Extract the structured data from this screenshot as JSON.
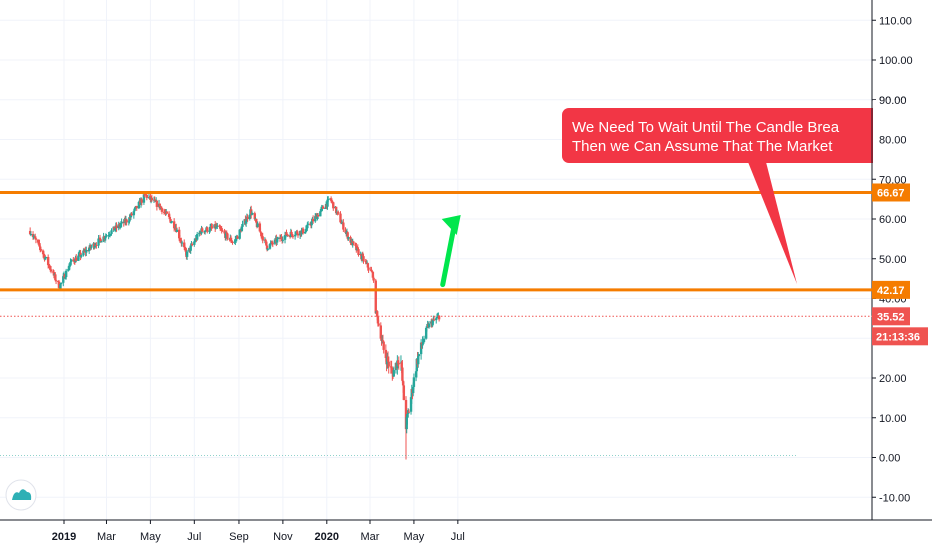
{
  "colors": {
    "up": "#26a69a",
    "down": "#ef5350",
    "level_line": "#f57c00",
    "last_price_line": "#ef5350",
    "annotation_bg": "#f23645",
    "arrow": "#00e64d",
    "grid": "#f0f3fa",
    "axis_line": "#131722"
  },
  "icons": {
    "logo": "tradingview-cloud-icon",
    "arrow": "up-arrow-icon"
  },
  "annotation": {
    "line1": "We Need To Wait Until The Candle Brea",
    "line2": "Then we Can Assume That The Market"
  },
  "chart_data": {
    "type": "candlestick",
    "title": "",
    "xlabel": "",
    "ylabel": "",
    "ylim": [
      -15,
      117
    ],
    "y_ticks": [
      "110.00",
      "100.00",
      "90.00",
      "80.00",
      "70.00",
      "60.00",
      "50.00",
      "40.00",
      "20.00",
      "10.00",
      "0.00",
      "-10.00"
    ],
    "x_ticks": [
      "2019",
      "Mar",
      "May",
      "Jul",
      "Sep",
      "Nov",
      "2020",
      "Mar",
      "May",
      "Jul"
    ],
    "grid": true,
    "price_path": [
      [
        "2018-11-15",
        57
      ],
      [
        "2018-12-01",
        52
      ],
      [
        "2018-12-20",
        45
      ],
      [
        "2018-12-26",
        43
      ],
      [
        "2019-01-10",
        49
      ],
      [
        "2019-02-01",
        52
      ],
      [
        "2019-03-01",
        56
      ],
      [
        "2019-04-01",
        60
      ],
      [
        "2019-04-24",
        66
      ],
      [
        "2019-05-15",
        63
      ],
      [
        "2019-06-05",
        58
      ],
      [
        "2019-06-20",
        51
      ],
      [
        "2019-07-10",
        57
      ],
      [
        "2019-08-01",
        58
      ],
      [
        "2019-08-25",
        54
      ],
      [
        "2019-09-17",
        62
      ],
      [
        "2019-10-10",
        53
      ],
      [
        "2019-11-05",
        56
      ],
      [
        "2019-12-01",
        57
      ],
      [
        "2020-01-06",
        65
      ],
      [
        "2020-02-01",
        55
      ],
      [
        "2020-02-20",
        50
      ],
      [
        "2020-03-05",
        46
      ],
      [
        "2020-03-09",
        37
      ],
      [
        "2020-03-20",
        27
      ],
      [
        "2020-04-01",
        21
      ],
      [
        "2020-04-12",
        26
      ],
      [
        "2020-04-20",
        8
      ],
      [
        "2020-04-25",
        13
      ],
      [
        "2020-05-05",
        24
      ],
      [
        "2020-05-20",
        33
      ],
      [
        "2020-06-05",
        35.52
      ]
    ],
    "series": [
      {
        "name": "",
        "type": "hline",
        "value": 66.67,
        "label": "66.67"
      },
      {
        "name": "",
        "type": "hline",
        "value": 42.17,
        "label": "42.17"
      },
      {
        "name": "",
        "type": "last_price",
        "value": 35.52,
        "label": "35.52",
        "countdown": "21:13:36"
      }
    ],
    "arrow": {
      "from": [
        "2020-06-10",
        43.5
      ],
      "to": [
        "2020-07-05",
        61
      ]
    }
  }
}
